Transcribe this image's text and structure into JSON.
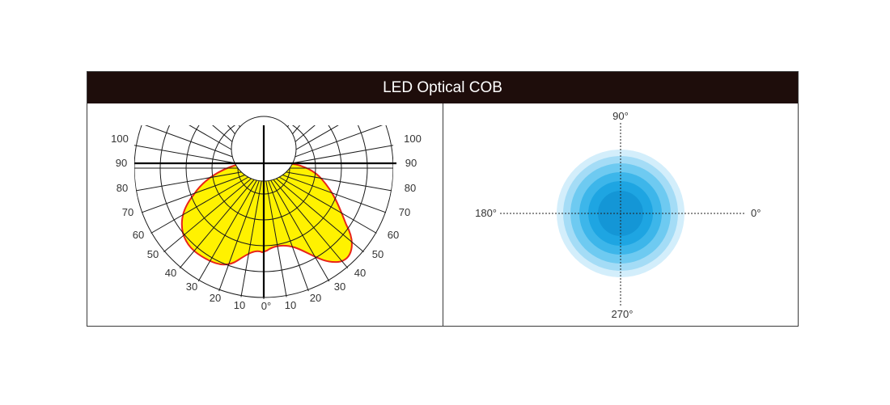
{
  "title": "LED Optical COB",
  "polar_diagram": {
    "left_labels": [
      "100",
      "90",
      "80",
      "70",
      "60",
      "50",
      "40",
      "30",
      "20",
      "10"
    ],
    "bottom_center_label": "0°",
    "right_labels": [
      "10",
      "20",
      "30",
      "40",
      "50",
      "60",
      "70",
      "80",
      "90",
      "100"
    ],
    "fill_color": "#fff200",
    "outline_color": "#e8231a"
  },
  "beam_diagram": {
    "top_label": "90°",
    "left_label": "180°",
    "right_label": "0°",
    "bottom_label": "270°",
    "colors": [
      "#d3eefb",
      "#a4dcf6",
      "#6ecaf1",
      "#3db6ea",
      "#1ea5e2",
      "#1496d6"
    ]
  }
}
